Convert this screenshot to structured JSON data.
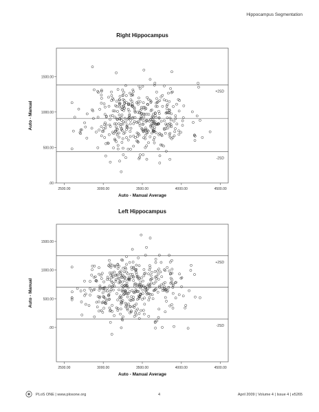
{
  "running_head": "Hippocampus Segmentation",
  "footer": {
    "journal": "PLoS ONE | www.plosone.org",
    "page_number": "4",
    "citation": "April 2009 | Volume 4 | Issue 4 | e5265"
  },
  "chart_data": [
    {
      "type": "scatter",
      "title": "Right Hippocampus",
      "xlabel": "Auto - Manual Average",
      "ylabel": "Auto - Manual",
      "xlim": [
        2400,
        4600
      ],
      "ylim": [
        0,
        1900
      ],
      "xticks": [
        2500,
        3000,
        3500,
        4000,
        4500
      ],
      "xtick_labels": [
        "2500.00",
        "3000.00",
        "3500.00",
        "4000.00",
        "4500.00"
      ],
      "yticks": [
        0,
        500,
        1000,
        1500
      ],
      "ytick_labels": [
        ".00",
        "500.00",
        "1000.00",
        "1500.00"
      ],
      "reference_lines": [
        {
          "label": "+2SD",
          "y": 1380
        },
        {
          "label": "",
          "y": 910
        },
        {
          "label": "-2SD",
          "y": 440
        }
      ],
      "grid": false,
      "point_summary": {
        "count": 420,
        "x_center": 3450,
        "x_sd": 330,
        "y_center": 910,
        "y_sd": 250
      }
    },
    {
      "type": "scatter",
      "title": "Left Hippocampus",
      "xlabel": "Auto - Manual Average",
      "ylabel": "Auto - Manual",
      "xlim": [
        2400,
        4600
      ],
      "ylim": [
        -600,
        1800
      ],
      "xticks": [
        2500,
        3000,
        3500,
        4000,
        4500
      ],
      "xtick_labels": [
        "2500.00",
        "3000.00",
        "3500.00",
        "4000.00",
        "4500.00"
      ],
      "yticks": [
        0,
        500,
        1000,
        1500
      ],
      "ytick_labels": [
        ".00",
        "500.00",
        "1000.00",
        "1500.00"
      ],
      "reference_lines": [
        {
          "label": "+2SD",
          "y": 1250
        },
        {
          "label": "",
          "y": 700
        },
        {
          "label": "-2SD",
          "y": 145
        }
      ],
      "grid": false,
      "point_summary": {
        "count": 420,
        "x_center": 3330,
        "x_sd": 320,
        "y_center": 690,
        "y_sd": 270
      }
    }
  ]
}
